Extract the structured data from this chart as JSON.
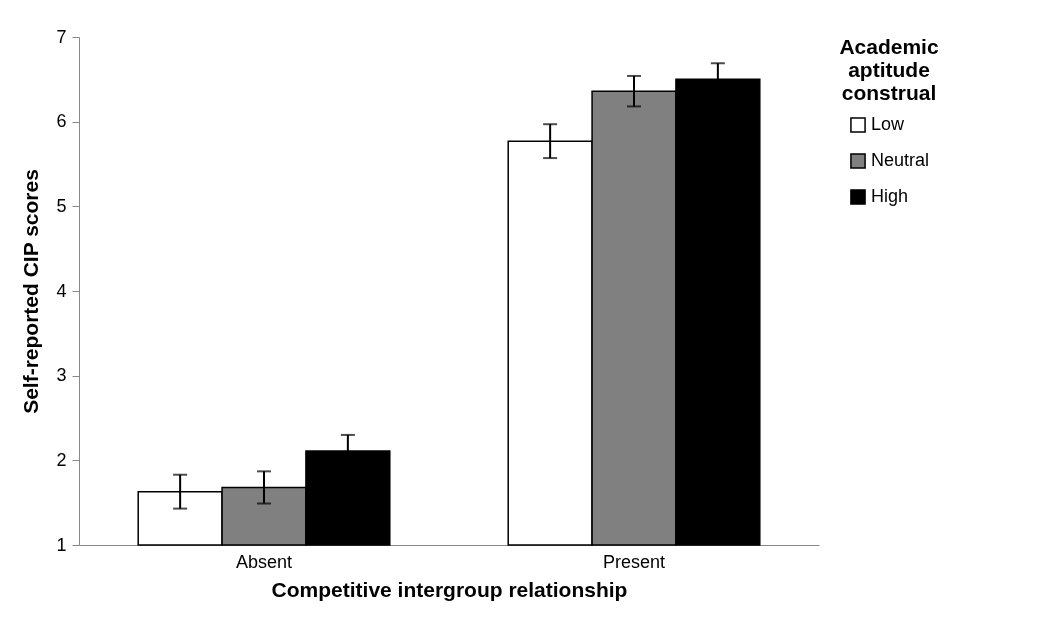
{
  "chart_data": {
    "type": "bar",
    "xlabel": "Competitive intergroup relationship",
    "ylabel": "Self-reported CIP scores",
    "legend_title": "Academic aptitude construal",
    "categories": [
      "Absent",
      "Present"
    ],
    "series": [
      {
        "name": "Low",
        "color": "#ffffff",
        "values": [
          1.63,
          5.77
        ],
        "errors": [
          0.2,
          0.2
        ]
      },
      {
        "name": "Neutral",
        "color": "#808080",
        "values": [
          1.68,
          6.36
        ],
        "errors": [
          0.19,
          0.18
        ]
      },
      {
        "name": "High",
        "color": "#000000",
        "values": [
          2.11,
          6.5
        ],
        "errors": [
          0.19,
          0.19
        ]
      }
    ],
    "ylim": [
      1,
      7
    ],
    "yticks": [
      1,
      2,
      3,
      4,
      5,
      6,
      7
    ],
    "grid": false,
    "legend": "right"
  }
}
